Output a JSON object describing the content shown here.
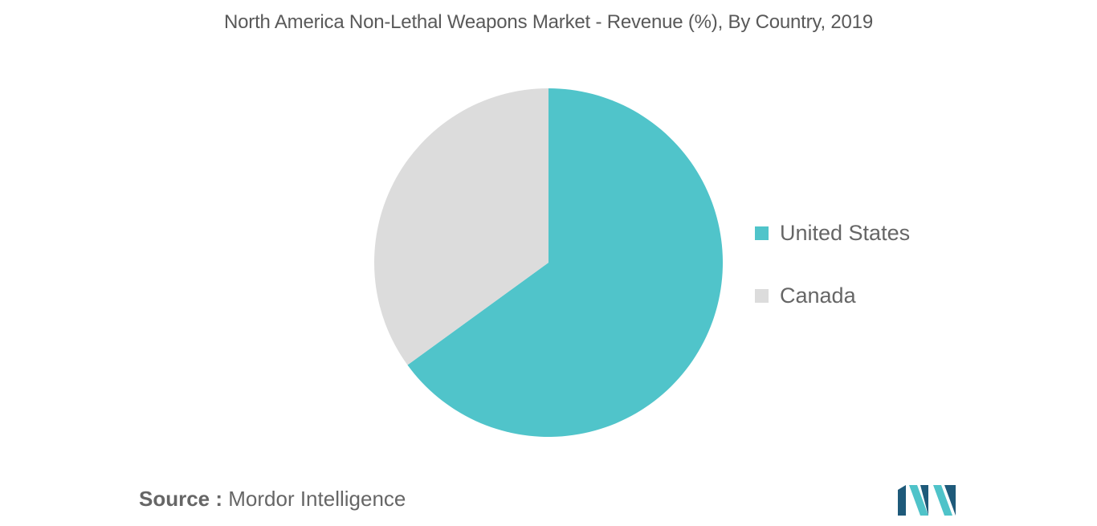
{
  "chart_data": {
    "type": "pie",
    "title": "North America Non-Lethal Weapons Market - Revenue (%), By Country, 2019",
    "series": [
      {
        "name": "United States",
        "value": 65,
        "color": "#50c4ca"
      },
      {
        "name": "Canada",
        "value": 35,
        "color": "#dcdcdc"
      }
    ],
    "legend_position": "right",
    "start_angle": "12 o'clock",
    "direction": "clockwise"
  },
  "source": {
    "key": "Source :",
    "value": " Mordor Intelligence"
  },
  "colors": {
    "us": "#50c4ca",
    "canada": "#dcdcdc",
    "logo_dark": "#1e5a7a",
    "logo_light": "#4fc3c9"
  }
}
